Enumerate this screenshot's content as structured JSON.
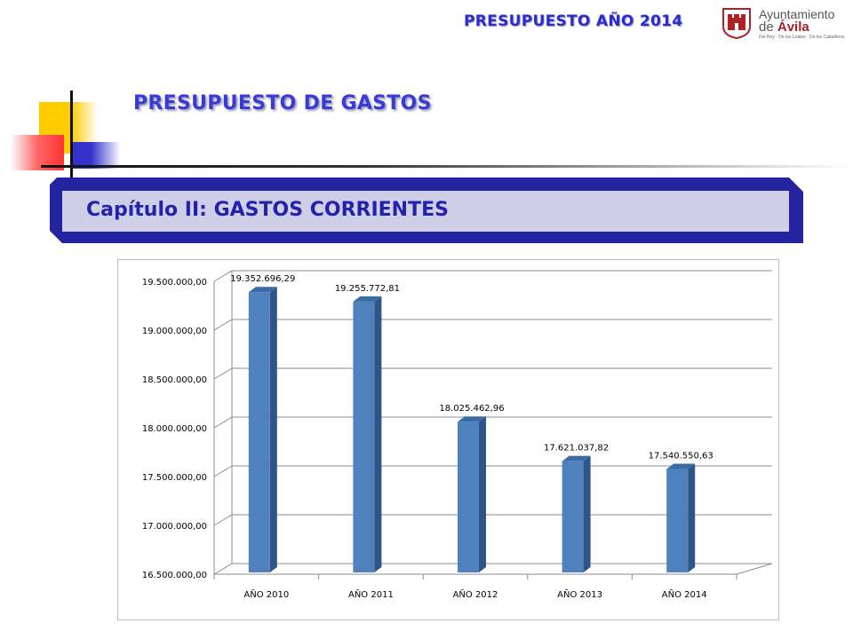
{
  "header": {
    "budget_title": "PRESUPUESTO AÑO 2014",
    "logo_line1": "Ayuntamiento",
    "logo_line2_prefix": "de ",
    "logo_line2_city": "Ávila",
    "logo_line3": "Del Rey · De los Leales · De los Caballeros"
  },
  "page_title": "PRESUPUESTO DE GASTOS",
  "chapter_label": "Capítulo II: GASTOS CORRIENTES",
  "colors": {
    "bar": "#4f81bd",
    "bar_side": "#2f5586",
    "bar_top": "#3b6ba3",
    "title": "#3a3ad8",
    "chapter_band": "#2424a0",
    "chapter_fill": "#cfd0e8"
  },
  "chart_data": {
    "type": "bar",
    "categories": [
      "AÑO 2010",
      "AÑO 2011",
      "AÑO 2012",
      "AÑO 2013",
      "AÑO 2014"
    ],
    "values": [
      19352696.29,
      19255772.81,
      18025462.96,
      17621037.82,
      17540550.63
    ],
    "data_labels": [
      "19.352.696,29",
      "19.255.772,81",
      "18.025.462,96",
      "17.621.037,82",
      "17.540.550,63"
    ],
    "y_ticks": [
      16500000,
      17000000,
      17500000,
      18000000,
      18500000,
      19000000,
      19500000
    ],
    "y_tick_labels": [
      "16.500.000,00",
      "17.000.000,00",
      "17.500.000,00",
      "18.000.000,00",
      "18.500.000,00",
      "19.000.000,00",
      "19.500.000,00"
    ],
    "ylim": [
      16500000,
      19500000
    ],
    "grid": true,
    "legend": "none",
    "style": "3d-column"
  }
}
